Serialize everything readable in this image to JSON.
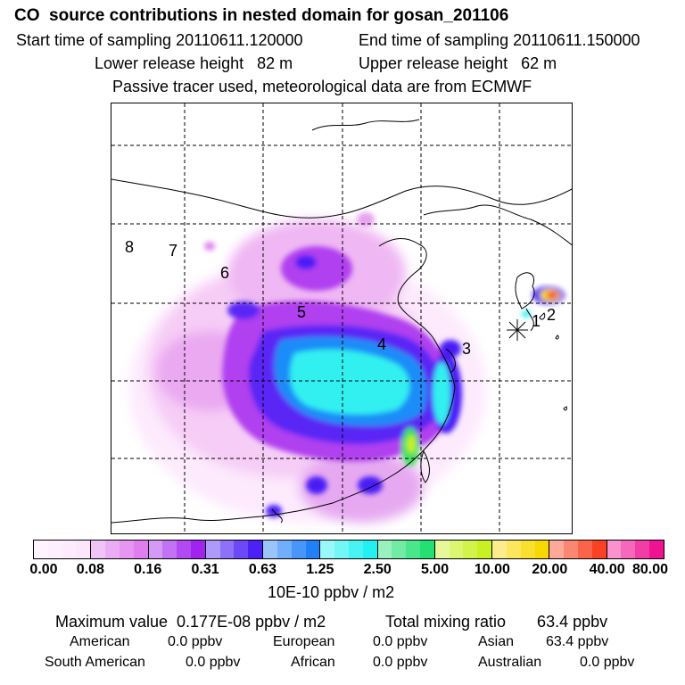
{
  "header": {
    "title": "CO  source contributions in nested domain for gosan_201106",
    "start_label": "Start time of sampling 20110611.120000",
    "end_label": "End time of sampling 20110611.150000",
    "lower_label": "Lower release height   82 m",
    "upper_label": "Upper release height   62 m",
    "note": "Passive tracer used, meteorological data are from ECMWF"
  },
  "map": {
    "region_labels": [
      "1",
      "2",
      "3",
      "4",
      "5",
      "6",
      "7",
      "8"
    ],
    "receptor_marker": "asterisk-marker-icon"
  },
  "colorbar": {
    "ticks": [
      "0.00",
      "0.08",
      "0.16",
      "0.31",
      "0.63",
      "1.25",
      "2.50",
      "5.00",
      "10.00",
      "20.00",
      "40.00",
      "80.00"
    ],
    "unit": "10E-10 ppbv / m2",
    "colors": [
      "#fce6fc",
      "#e07cf0",
      "#a020f0",
      "#4a1ef5",
      "#1e7ef8",
      "#20f0f0",
      "#20e070",
      "#c8f020",
      "#f8d800",
      "#f84020",
      "#f01090"
    ]
  },
  "summary": {
    "max_label": "Maximum value  0.177E-08 ppbv / m2",
    "total_label": "Total mixing ratio       63.4 ppbv",
    "american_label": "American",
    "american_value": "0.0 ppbv",
    "european_label": "European",
    "european_value": "0.0 ppbv",
    "asian_label": "Asian",
    "asian_value": "63.4 ppbv",
    "south_american_label": "South American",
    "south_american_value": "0.0 ppbv",
    "african_label": "African",
    "african_value": "0.0 ppbv",
    "australian_label": "Australian",
    "australian_value": "0.0 ppbv"
  }
}
